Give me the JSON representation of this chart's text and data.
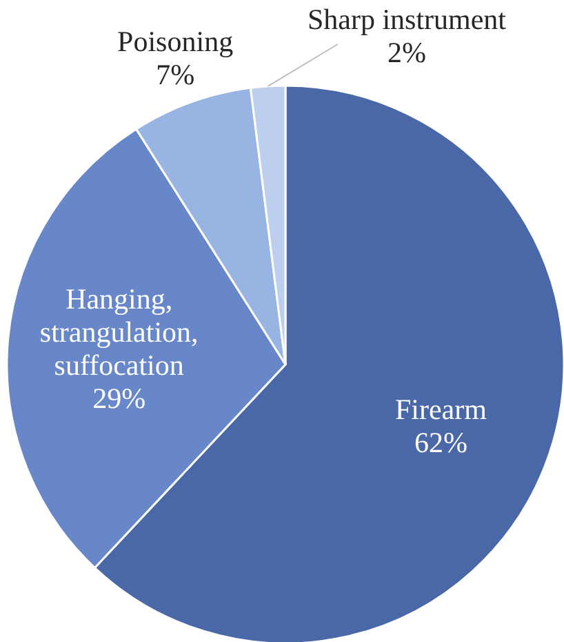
{
  "chart_data": {
    "type": "pie",
    "categories": [
      "Firearm",
      "Hanging, strangulation, suffocation",
      "Poisoning",
      "Sharp instrument"
    ],
    "values": [
      62,
      29,
      7,
      2
    ],
    "colors": [
      "#4a67a8",
      "#6787c9",
      "#97b4e2",
      "#bccfee"
    ],
    "value_labels": [
      "62%",
      "29%",
      "7%",
      "2%"
    ]
  }
}
